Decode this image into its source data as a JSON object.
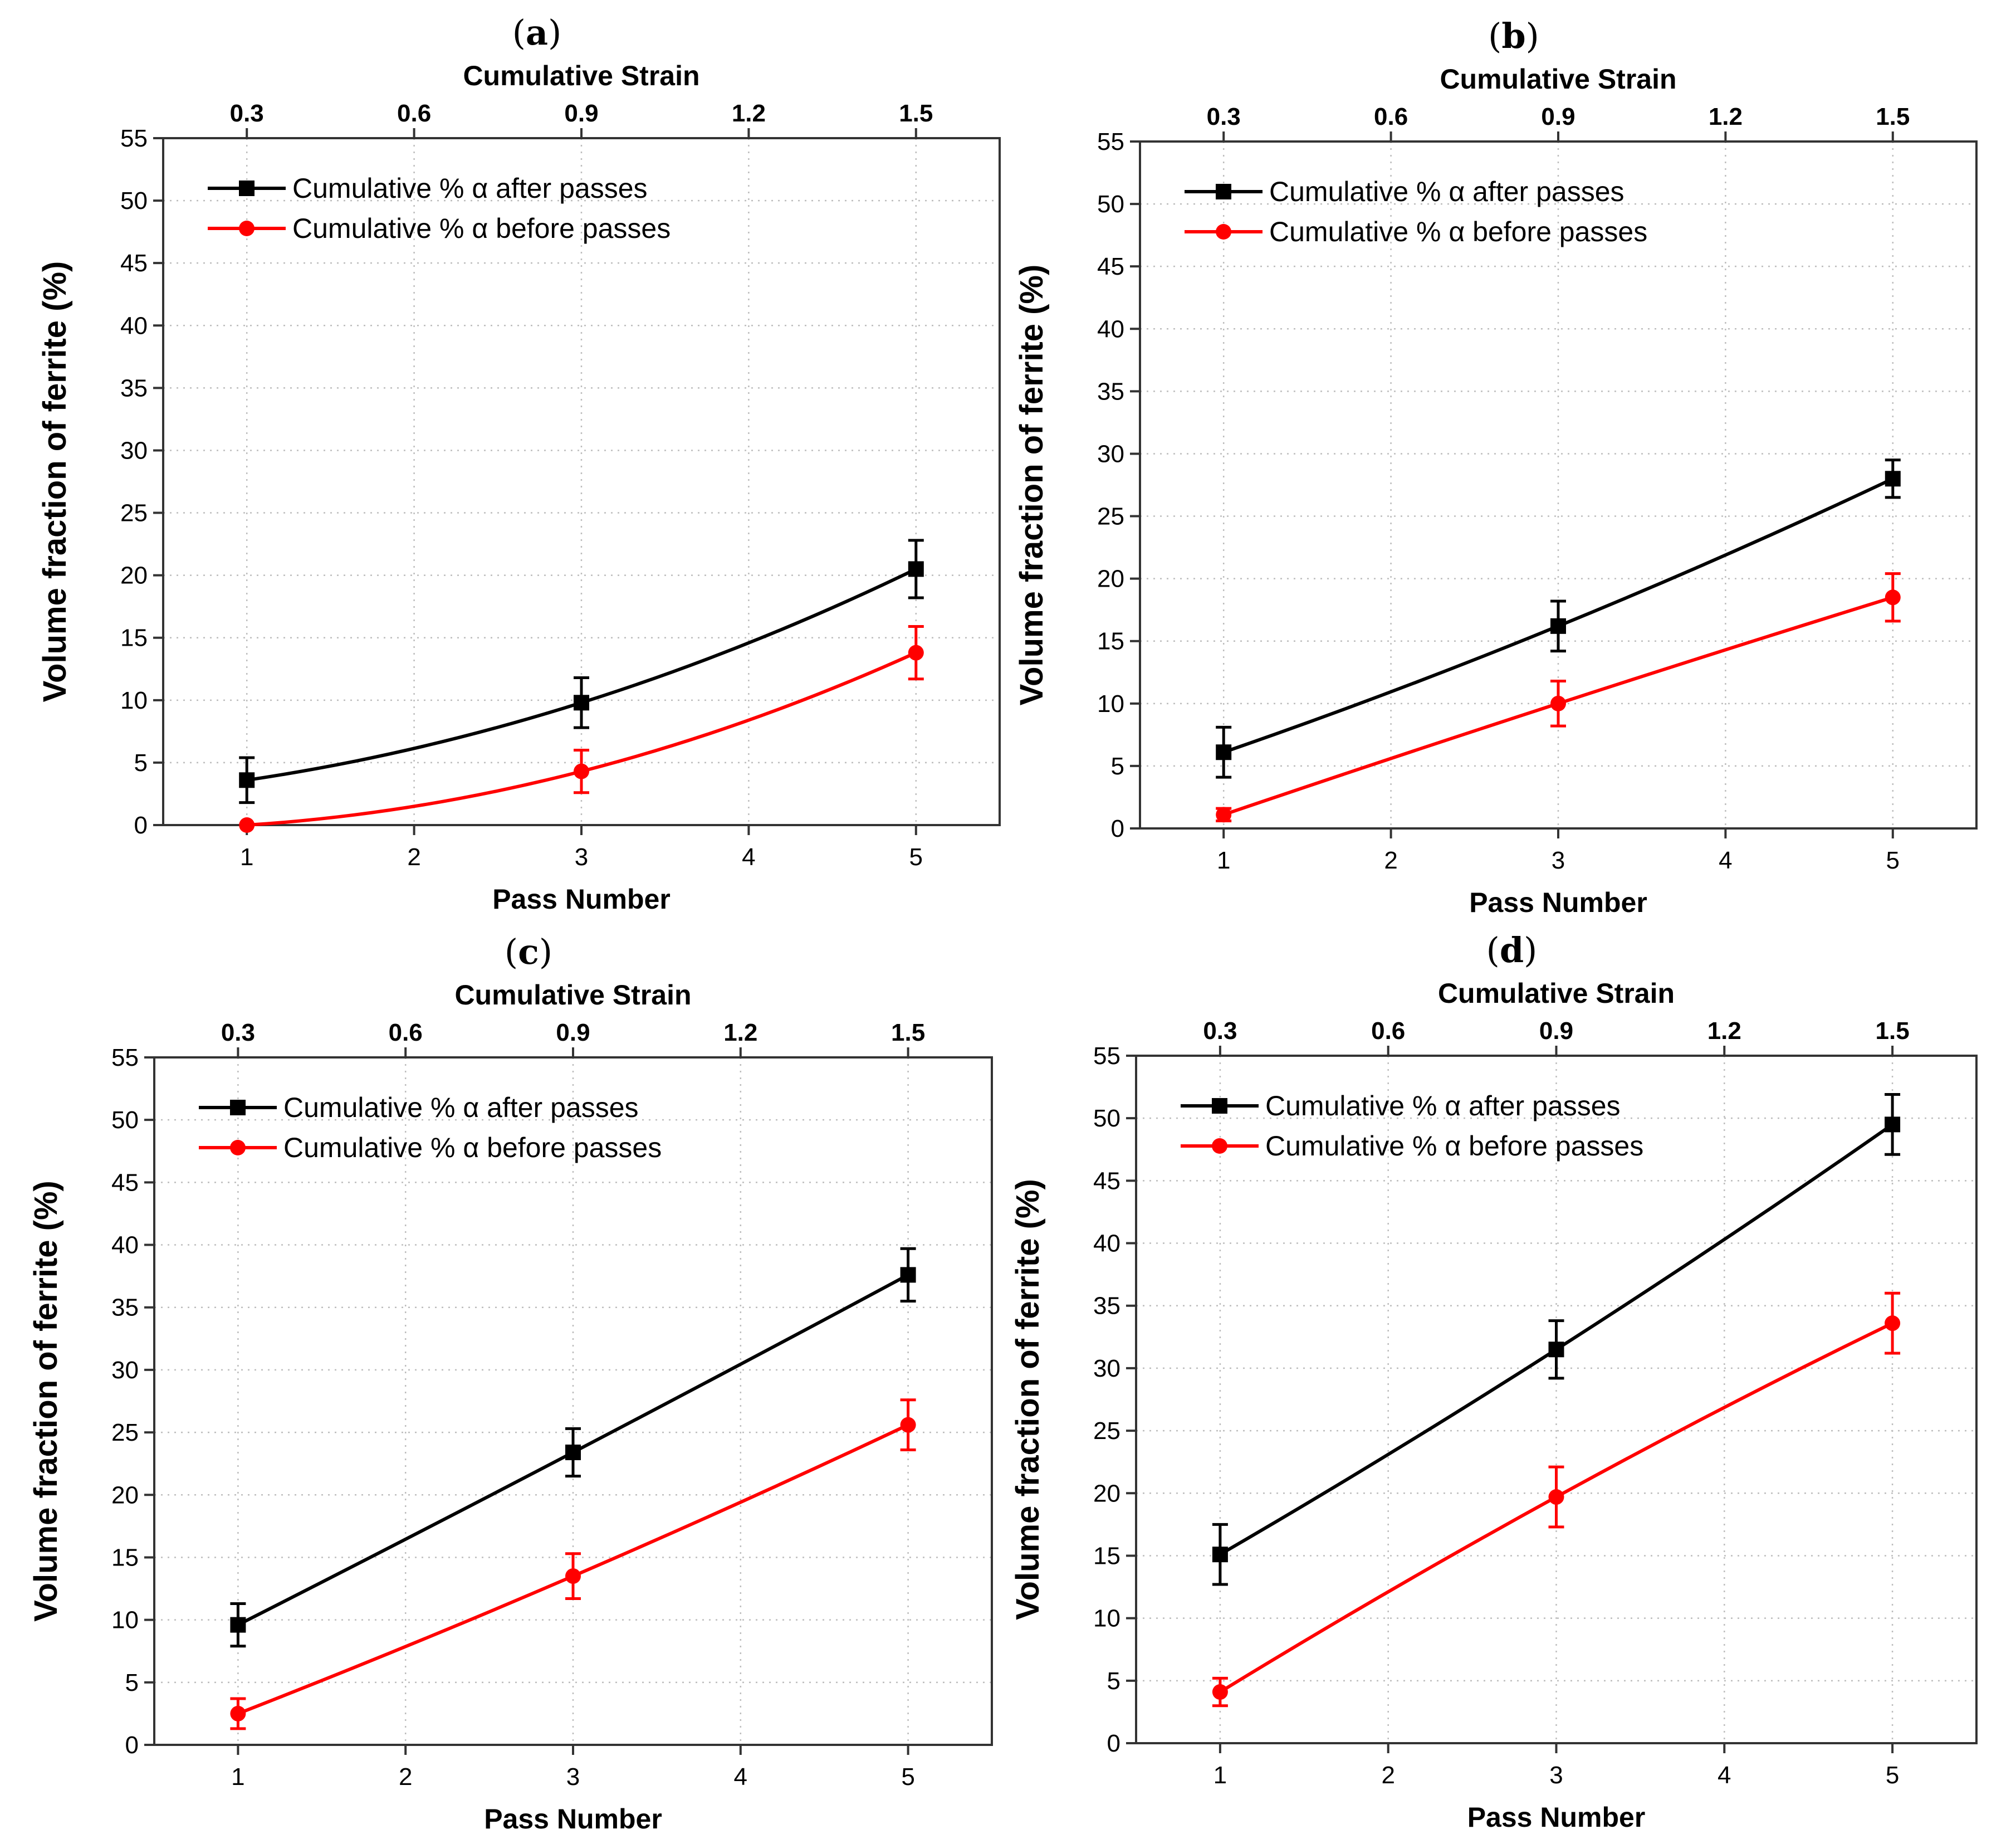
{
  "chart_data": [
    {
      "type": "line",
      "panel_label": "a",
      "xlabel": "Pass Number",
      "x2label": "Cumulative Strain",
      "ylabel": "Volume fraction of ferrite (%)",
      "xlim": [
        0.5,
        5.5
      ],
      "ylim": [
        0,
        55
      ],
      "xticks": [
        1,
        2,
        3,
        4,
        5
      ],
      "x2ticks": [
        "0.3",
        "0.6",
        "0.9",
        "1.2",
        "1.5"
      ],
      "yticks": [
        0,
        5,
        10,
        15,
        20,
        25,
        30,
        35,
        40,
        45,
        50,
        55
      ],
      "grid": true,
      "legend_position": "top-left",
      "series": [
        {
          "name": "Cumulative % α after passes",
          "color": "#000000",
          "marker": "square",
          "x": [
            1,
            3,
            5
          ],
          "y": [
            3.6,
            9.8,
            20.5
          ],
          "err": [
            1.8,
            2.0,
            2.3
          ]
        },
        {
          "name": "Cumulative % α before passes",
          "color": "#ff0000",
          "marker": "circle",
          "x": [
            1,
            3,
            5
          ],
          "y": [
            0,
            4.3,
            13.8
          ],
          "err": [
            0,
            1.7,
            2.1
          ]
        }
      ]
    },
    {
      "type": "line",
      "panel_label": "b",
      "xlabel": "Pass Number",
      "x2label": "Cumulative Strain",
      "ylabel": "Volume fraction of ferrite (%)",
      "xlim": [
        0.5,
        5.5
      ],
      "ylim": [
        0,
        55
      ],
      "xticks": [
        1,
        2,
        3,
        4,
        5
      ],
      "x2ticks": [
        "0.3",
        "0.6",
        "0.9",
        "1.2",
        "1.5"
      ],
      "yticks": [
        0,
        5,
        10,
        15,
        20,
        25,
        30,
        35,
        40,
        45,
        50,
        55
      ],
      "grid": true,
      "legend_position": "top-left",
      "series": [
        {
          "name": "Cumulative % α after passes",
          "color": "#000000",
          "marker": "square",
          "x": [
            1,
            3,
            5
          ],
          "y": [
            6.1,
            16.2,
            28.0
          ],
          "err": [
            2.0,
            2.0,
            1.5
          ]
        },
        {
          "name": "Cumulative % α before passes",
          "color": "#ff0000",
          "marker": "circle",
          "x": [
            1,
            3,
            5
          ],
          "y": [
            1.1,
            10.0,
            18.5
          ],
          "err": [
            0.5,
            1.8,
            1.9
          ]
        }
      ]
    },
    {
      "type": "line",
      "panel_label": "c",
      "xlabel": "Pass Number",
      "x2label": "Cumulative Strain",
      "ylabel": "Volume fraction of ferrite (%)",
      "xlim": [
        0.5,
        5.5
      ],
      "ylim": [
        0,
        55
      ],
      "xticks": [
        1,
        2,
        3,
        4,
        5
      ],
      "x2ticks": [
        "0.3",
        "0.6",
        "0.9",
        "1.2",
        "1.5"
      ],
      "yticks": [
        0,
        5,
        10,
        15,
        20,
        25,
        30,
        35,
        40,
        45,
        50,
        55
      ],
      "grid": true,
      "legend_position": "top-left",
      "series": [
        {
          "name": "Cumulative % α after passes",
          "color": "#000000",
          "marker": "square",
          "x": [
            1,
            3,
            5
          ],
          "y": [
            9.6,
            23.4,
            37.6
          ],
          "err": [
            1.7,
            1.9,
            2.1
          ]
        },
        {
          "name": "Cumulative % α before passes",
          "color": "#ff0000",
          "marker": "circle",
          "x": [
            1,
            3,
            5
          ],
          "y": [
            2.5,
            13.5,
            25.6
          ],
          "err": [
            1.2,
            1.8,
            2.0
          ]
        }
      ]
    },
    {
      "type": "line",
      "panel_label": "d",
      "xlabel": "Pass Number",
      "x2label": "Cumulative Strain",
      "ylabel": "Volume fraction of ferrite (%)",
      "xlim": [
        0.5,
        5.5
      ],
      "ylim": [
        0,
        55
      ],
      "xticks": [
        1,
        2,
        3,
        4,
        5
      ],
      "x2ticks": [
        "0.3",
        "0.6",
        "0.9",
        "1.2",
        "1.5"
      ],
      "yticks": [
        0,
        5,
        10,
        15,
        20,
        25,
        30,
        35,
        40,
        45,
        50,
        55
      ],
      "grid": true,
      "legend_position": "top-left",
      "series": [
        {
          "name": "Cumulative % α after passes",
          "color": "#000000",
          "marker": "square",
          "x": [
            1,
            3,
            5
          ],
          "y": [
            15.1,
            31.5,
            49.5
          ],
          "err": [
            2.4,
            2.3,
            2.4
          ]
        },
        {
          "name": "Cumulative % α before passes",
          "color": "#ff0000",
          "marker": "circle",
          "x": [
            1,
            3,
            5
          ],
          "y": [
            4.1,
            19.7,
            33.6
          ],
          "err": [
            1.1,
            2.4,
            2.4
          ]
        }
      ]
    }
  ]
}
